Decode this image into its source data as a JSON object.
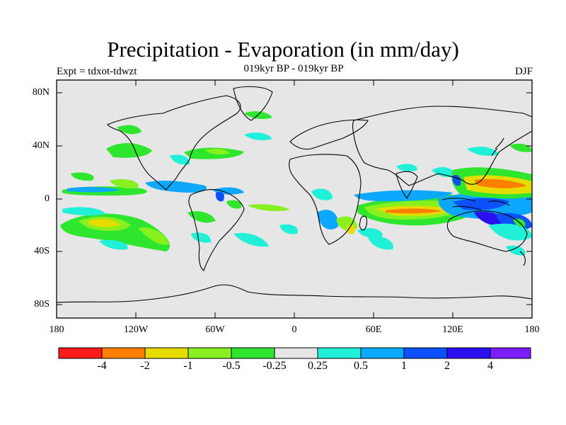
{
  "title": "Precipitation - Evaporation (in mm/day)",
  "subtitle": "019kyr BP - 019kyr BP",
  "experiment": "Expt = tdxot-tdwzt",
  "season": "DJF",
  "lat_labels": [
    "80N",
    "40N",
    "0",
    "40S",
    "80S"
  ],
  "lon_labels": [
    "180",
    "120W",
    "60W",
    "0",
    "60E",
    "120E",
    "180"
  ],
  "colorbar": {
    "colors": [
      "#ff1a1a",
      "#ff8000",
      "#e6dd00",
      "#88f01e",
      "#2fe62f",
      "#e6e6e6",
      "#20f0d8",
      "#0ca8ff",
      "#0c50ff",
      "#2a10f0",
      "#7a1eff"
    ],
    "labels": [
      "-4",
      "-2",
      "-1",
      "-0.5",
      "-0.25",
      "0.25",
      "0.5",
      "1",
      "2",
      "4"
    ]
  }
}
